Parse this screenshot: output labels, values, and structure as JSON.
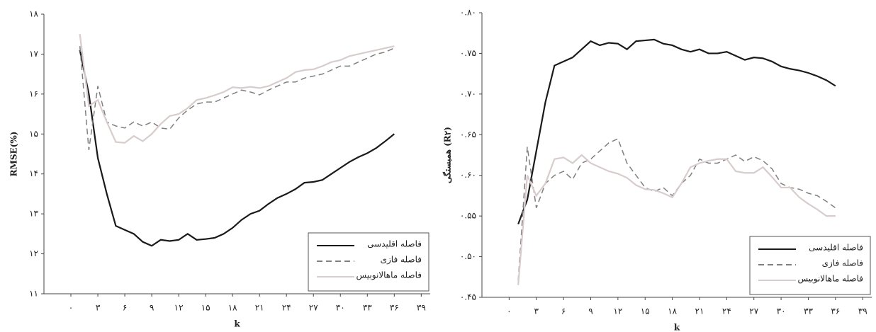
{
  "chart_data": [
    {
      "type": "line",
      "ylabel": "RMSE(%)",
      "xlabel": "k",
      "xlim": [
        -3,
        40
      ],
      "ylim": [
        11,
        18
      ],
      "xticks": [
        {
          "value": 0,
          "label": "۰"
        },
        {
          "value": 3,
          "label": "۳"
        },
        {
          "value": 6,
          "label": "۶"
        },
        {
          "value": 9,
          "label": "۹"
        },
        {
          "value": 12,
          "label": "۱۲"
        },
        {
          "value": 15,
          "label": "۱۵"
        },
        {
          "value": 18,
          "label": "۱۸"
        },
        {
          "value": 21,
          "label": "۲۱"
        },
        {
          "value": 24,
          "label": "۲۴"
        },
        {
          "value": 27,
          "label": "۲۷"
        },
        {
          "value": 30,
          "label": "۳۰"
        },
        {
          "value": 33,
          "label": "۳۳"
        },
        {
          "value": 36,
          "label": "۳۶"
        },
        {
          "value": 39,
          "label": "۳۹"
        }
      ],
      "yticks": [
        {
          "value": 11,
          "label": "۱۱"
        },
        {
          "value": 12,
          "label": "۱۲"
        },
        {
          "value": 13,
          "label": "۱۳"
        },
        {
          "value": 14,
          "label": "۱۴"
        },
        {
          "value": 15,
          "label": "۱۵"
        },
        {
          "value": 16,
          "label": "۱۶"
        },
        {
          "value": 17,
          "label": "۱۷"
        },
        {
          "value": 18,
          "label": "۱۸"
        }
      ],
      "legend": "lower right",
      "x": [
        1,
        2,
        3,
        4,
        5,
        6,
        7,
        8,
        9,
        10,
        11,
        12,
        13,
        14,
        15,
        16,
        17,
        18,
        19,
        20,
        21,
        22,
        23,
        24,
        25,
        26,
        27,
        28,
        29,
        30,
        31,
        32,
        33,
        34,
        35,
        36
      ],
      "series": [
        {
          "name": "فاصله اقلیدسی",
          "color": "#1a1a1a",
          "style": "solid",
          "values": [
            17.1,
            16,
            14.4,
            13.5,
            12.7,
            12.6,
            12.5,
            12.3,
            12.2,
            12.35,
            12.32,
            12.35,
            12.5,
            12.35,
            12.37,
            12.4,
            12.5,
            12.65,
            12.85,
            13,
            13.08,
            13.25,
            13.4,
            13.5,
            13.62,
            13.78,
            13.8,
            13.85,
            14,
            14.15,
            14.3,
            14.42,
            14.52,
            14.65,
            14.82,
            15.0
          ]
        },
        {
          "name": "فاصله فازی",
          "color": "#808080",
          "style": "dashed",
          "values": [
            17.2,
            14.6,
            16.2,
            15.3,
            15.2,
            15.15,
            15.3,
            15.2,
            15.3,
            15.15,
            15.12,
            15.4,
            15.6,
            15.75,
            15.8,
            15.8,
            15.9,
            16,
            16.1,
            16.05,
            15.98,
            16.1,
            16.2,
            16.3,
            16.3,
            16.4,
            16.45,
            16.5,
            16.6,
            16.7,
            16.7,
            16.8,
            16.9,
            17,
            17.05,
            17.15
          ]
        },
        {
          "name": "فاصله ماهالانوبیس",
          "color": "#d8cccc",
          "style": "solid",
          "values": [
            17.5,
            15.7,
            15.85,
            15.3,
            14.8,
            14.78,
            14.95,
            14.82,
            15.0,
            15.25,
            15.45,
            15.5,
            15.65,
            15.85,
            15.9,
            15.97,
            16.05,
            16.17,
            16.15,
            16.18,
            16.15,
            16.2,
            16.3,
            16.4,
            16.55,
            16.6,
            16.62,
            16.7,
            16.8,
            16.85,
            16.95,
            17,
            17.05,
            17.1,
            17.15,
            17.2
          ]
        }
      ]
    },
    {
      "type": "line",
      "ylabel": "همبستگی (R۲)",
      "xlabel": "k",
      "xlim": [
        -3,
        40
      ],
      "ylim": [
        0.45,
        0.8
      ],
      "xticks": [
        {
          "value": 0,
          "label": "۰"
        },
        {
          "value": 3,
          "label": "۳"
        },
        {
          "value": 6,
          "label": "۶"
        },
        {
          "value": 9,
          "label": "۹"
        },
        {
          "value": 12,
          "label": "۱۲"
        },
        {
          "value": 15,
          "label": "۱۵"
        },
        {
          "value": 18,
          "label": "۱۸"
        },
        {
          "value": 21,
          "label": "۲۱"
        },
        {
          "value": 24,
          "label": "۲۴"
        },
        {
          "value": 27,
          "label": "۲۷"
        },
        {
          "value": 30,
          "label": "۳۰"
        },
        {
          "value": 33,
          "label": "۳۳"
        },
        {
          "value": 36,
          "label": "۳۶"
        },
        {
          "value": 39,
          "label": "۳۹"
        }
      ],
      "yticks": [
        {
          "value": 0.45,
          "label": "۰.۴۵"
        },
        {
          "value": 0.5,
          "label": "۰.۵۰"
        },
        {
          "value": 0.55,
          "label": "۰.۵۵"
        },
        {
          "value": 0.6,
          "label": "۰.۶۰"
        },
        {
          "value": 0.65,
          "label": "۰.۶۵"
        },
        {
          "value": 0.7,
          "label": "۰.۷۰"
        },
        {
          "value": 0.75,
          "label": "۰.۷۵"
        },
        {
          "value": 0.8,
          "label": "۰.۸۰"
        }
      ],
      "legend": "lower right",
      "x": [
        1,
        2,
        3,
        4,
        5,
        6,
        7,
        8,
        9,
        10,
        11,
        12,
        13,
        14,
        15,
        16,
        17,
        18,
        19,
        20,
        21,
        22,
        23,
        24,
        25,
        26,
        27,
        28,
        29,
        30,
        31,
        32,
        33,
        34,
        35,
        36
      ],
      "series": [
        {
          "name": "فاصله اقلیدسی",
          "color": "#1a1a1a",
          "style": "solid",
          "values": [
            0.54,
            0.57,
            0.63,
            0.69,
            0.735,
            0.74,
            0.745,
            0.755,
            0.765,
            0.76,
            0.763,
            0.762,
            0.755,
            0.765,
            0.766,
            0.767,
            0.762,
            0.76,
            0.755,
            0.752,
            0.755,
            0.75,
            0.75,
            0.752,
            0.747,
            0.742,
            0.745,
            0.744,
            0.74,
            0.734,
            0.731,
            0.729,
            0.726,
            0.722,
            0.717,
            0.71
          ]
        },
        {
          "name": "فاصله فازی",
          "color": "#808080",
          "style": "dashed",
          "values": [
            0.47,
            0.635,
            0.56,
            0.59,
            0.6,
            0.605,
            0.595,
            0.615,
            0.62,
            0.63,
            0.64,
            0.645,
            0.615,
            0.6,
            0.585,
            0.58,
            0.585,
            0.575,
            0.59,
            0.6,
            0.62,
            0.615,
            0.615,
            0.62,
            0.625,
            0.617,
            0.623,
            0.618,
            0.608,
            0.59,
            0.585,
            0.583,
            0.578,
            0.575,
            0.568,
            0.56
          ]
        },
        {
          "name": "فاصله ماهالانوبیس",
          "color": "#d8cccc",
          "style": "solid",
          "values": [
            0.465,
            0.6,
            0.575,
            0.59,
            0.62,
            0.622,
            0.615,
            0.625,
            0.615,
            0.61,
            0.605,
            0.602,
            0.597,
            0.588,
            0.583,
            0.582,
            0.578,
            0.573,
            0.59,
            0.61,
            0.615,
            0.618,
            0.62,
            0.62,
            0.605,
            0.603,
            0.603,
            0.61,
            0.598,
            0.585,
            0.585,
            0.573,
            0.565,
            0.558,
            0.55,
            0.55
          ]
        }
      ]
    }
  ]
}
